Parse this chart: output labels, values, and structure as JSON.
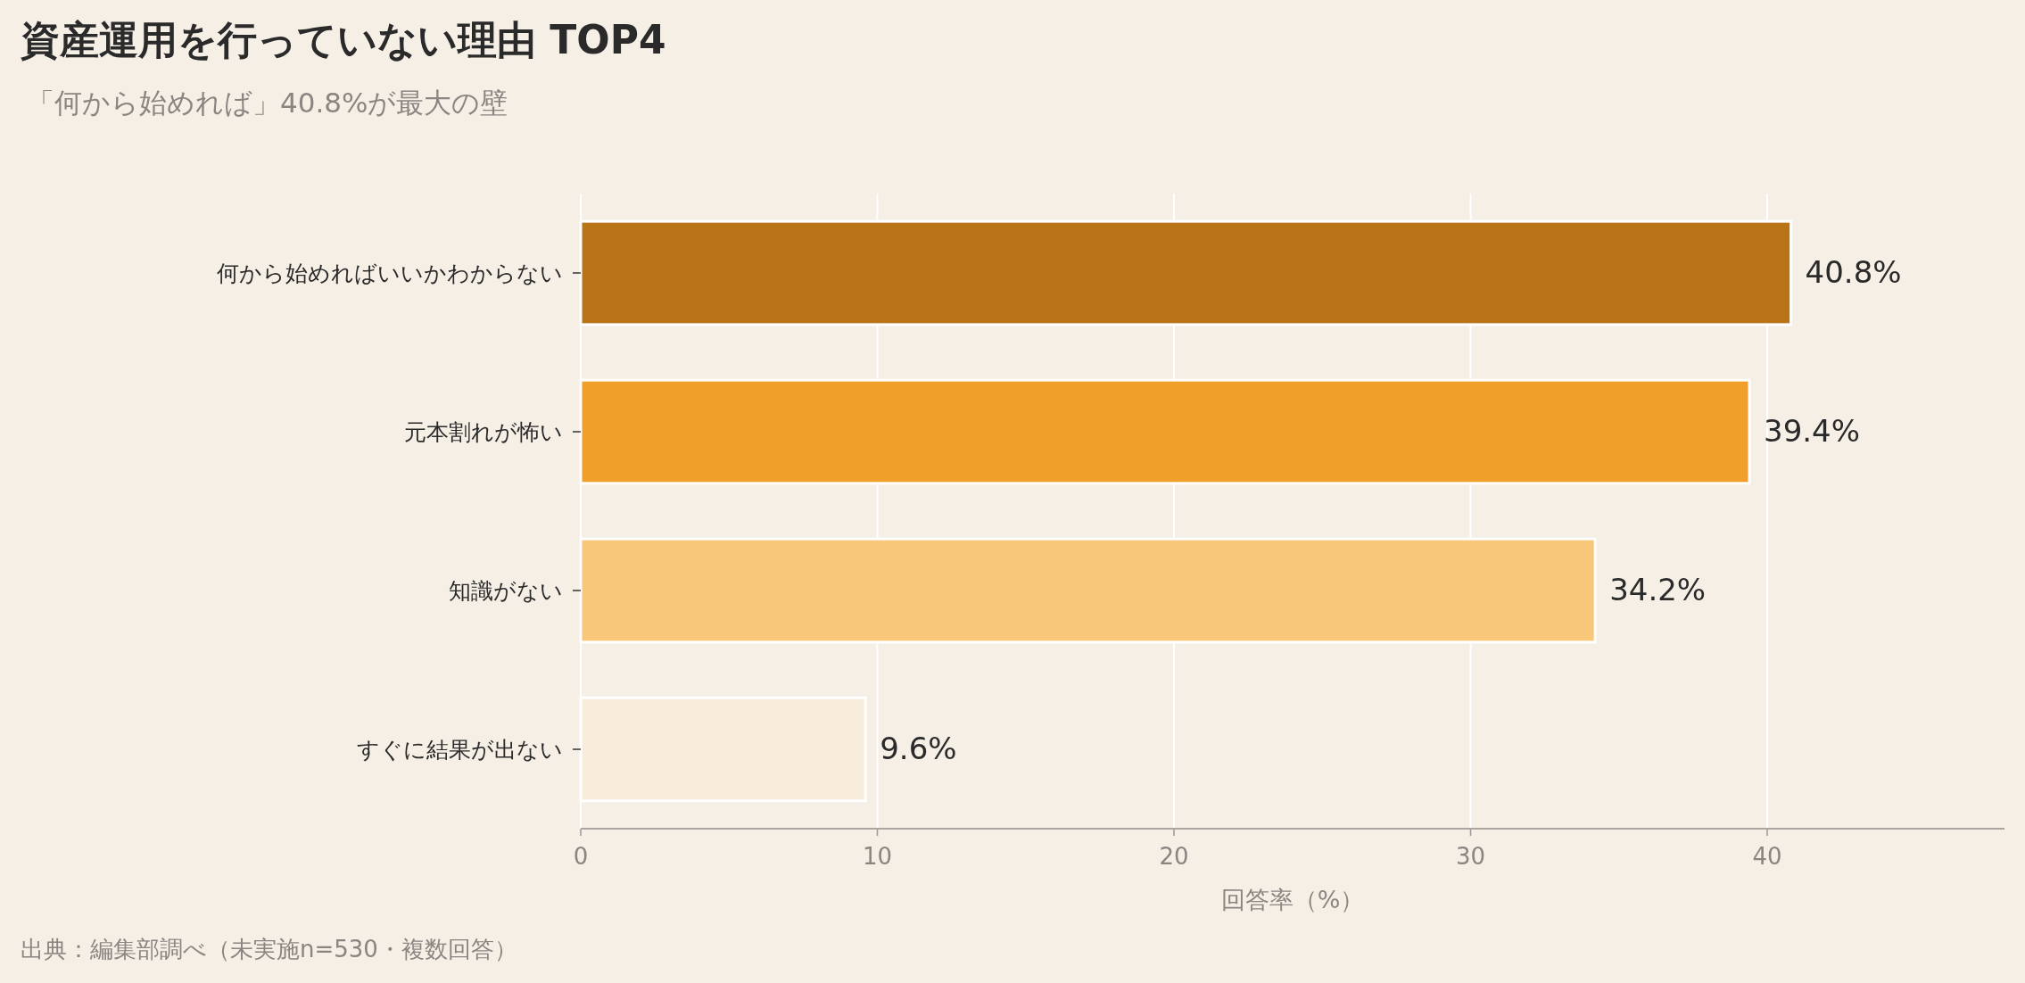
{
  "chart_data": {
    "type": "bar",
    "orientation": "horizontal",
    "title": "資産運用を行っていない理由 TOP4",
    "subtitle": "「何から始めれば」40.8%が最大の壁",
    "xlabel": "回答率（%）",
    "annotations": [
      "出典：編集部調べ（未実施n=530・複数回答）"
    ],
    "categories": [
      "何から始めればいいかわからない",
      "元本割れが怖い",
      "知識がない",
      "すぐに結果が出ない"
    ],
    "values": [
      40.8,
      39.4,
      34.2,
      9.6
    ],
    "colors": [
      "#b97418",
      "#f0a02a",
      "#f9c77a",
      "#f8ecda"
    ],
    "value_labels": [
      "40.8%",
      "39.4%",
      "34.2%",
      "9.6%"
    ],
    "xlim": [
      0,
      48
    ],
    "xticks": [
      0,
      10,
      20,
      30,
      40
    ],
    "grid": "x"
  }
}
